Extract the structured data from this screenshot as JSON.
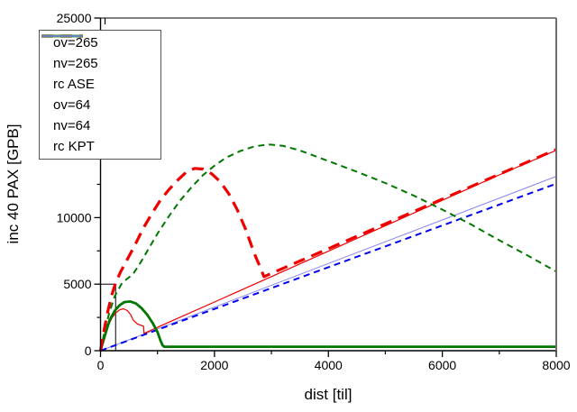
{
  "chart_data": {
    "type": "line",
    "title": "",
    "xlabel": "dist [til]",
    "ylabel": "inc 40 PAX [GPB]",
    "xlim": [
      0,
      8000
    ],
    "ylim": [
      0,
      25000
    ],
    "grid": false,
    "frame_colors": {
      "left": "#000000",
      "bottom": "#000000",
      "top": "#000000",
      "right": "#6e6e6e"
    },
    "x_ticks": {
      "major": [
        0,
        2000,
        4000,
        6000,
        8000
      ],
      "minor": [
        1000,
        3000,
        5000,
        7000
      ],
      "labels": [
        "0",
        "2000",
        "4000",
        "6000",
        "8000"
      ]
    },
    "y_ticks": {
      "major": [
        0,
        5000,
        10000,
        15000,
        20000,
        25000
      ],
      "minor": [
        2500,
        7500,
        12500,
        17500,
        22500
      ],
      "visible_labels": [
        0,
        5000,
        10000,
        25000
      ]
    },
    "legend": {
      "position": "top-left",
      "border_color": "#545454",
      "background": "#ffffff"
    },
    "annotation_box": {
      "x_range": [
        0,
        265
      ],
      "y_range": [
        0,
        5000
      ],
      "stroke": "#000000"
    },
    "z_order": [
      "rc KPT",
      "rc ASE",
      "ov=64",
      "nv=265",
      "nv=64",
      "ov=265"
    ],
    "series": [
      {
        "name": "ov=265",
        "color": "#ee0000",
        "width": 3.2,
        "dash": "13 8",
        "points": [
          [
            0,
            0
          ],
          [
            60,
            1500
          ],
          [
            130,
            3000
          ],
          [
            200,
            4200
          ],
          [
            265,
            5100
          ],
          [
            350,
            5900
          ],
          [
            450,
            6700
          ],
          [
            600,
            7900
          ],
          [
            750,
            9200
          ],
          [
            900,
            10300
          ],
          [
            1050,
            11300
          ],
          [
            1200,
            12100
          ],
          [
            1350,
            12800
          ],
          [
            1500,
            13400
          ],
          [
            1650,
            13700
          ],
          [
            1800,
            13650
          ],
          [
            1950,
            13300
          ],
          [
            2100,
            12700
          ],
          [
            2250,
            11800
          ],
          [
            2400,
            10600
          ],
          [
            2550,
            9100
          ],
          [
            2700,
            7300
          ],
          [
            2800,
            6300
          ],
          [
            2870,
            5560
          ],
          [
            3000,
            5810
          ],
          [
            4000,
            7670
          ],
          [
            5000,
            9530
          ],
          [
            6000,
            11390
          ],
          [
            7000,
            13260
          ],
          [
            8000,
            15120
          ]
        ]
      },
      {
        "name": "nv=265",
        "color": "#007700",
        "width": 2,
        "dash": "7 5",
        "points": [
          [
            0,
            0
          ],
          [
            70,
            1400
          ],
          [
            150,
            2800
          ],
          [
            250,
            4100
          ],
          [
            380,
            5100
          ],
          [
            570,
            5750
          ],
          [
            700,
            6600
          ],
          [
            850,
            7700
          ],
          [
            1000,
            8800
          ],
          [
            1200,
            10100
          ],
          [
            1400,
            11300
          ],
          [
            1600,
            12300
          ],
          [
            1800,
            13200
          ],
          [
            2000,
            13900
          ],
          [
            2200,
            14500
          ],
          [
            2450,
            15000
          ],
          [
            2700,
            15350
          ],
          [
            2950,
            15500
          ],
          [
            3200,
            15400
          ],
          [
            3500,
            15050
          ],
          [
            4000,
            14250
          ],
          [
            4500,
            13450
          ],
          [
            5000,
            12600
          ],
          [
            5500,
            11650
          ],
          [
            6000,
            10600
          ],
          [
            6500,
            9500
          ],
          [
            7000,
            8300
          ],
          [
            7500,
            7150
          ],
          [
            8000,
            5950
          ]
        ]
      },
      {
        "name": "rc ASE",
        "color": "#0000ee",
        "width": 2,
        "dash": "7 5",
        "points": [
          [
            0,
            0
          ],
          [
            8000,
            12550
          ]
        ]
      },
      {
        "name": "ov=64",
        "color": "#ee0000",
        "width": 1.2,
        "dash": null,
        "points": [
          [
            0,
            0
          ],
          [
            60,
            900
          ],
          [
            130,
            1800
          ],
          [
            200,
            2450
          ],
          [
            270,
            2850
          ],
          [
            340,
            3080
          ],
          [
            400,
            3150
          ],
          [
            470,
            3020
          ],
          [
            530,
            2700
          ],
          [
            575,
            2300
          ],
          [
            650,
            2000
          ],
          [
            755,
            1845
          ],
          [
            765,
            1300
          ],
          [
            1200,
            2140
          ],
          [
            2000,
            3660
          ],
          [
            3000,
            5570
          ],
          [
            4000,
            7480
          ],
          [
            5000,
            9390
          ],
          [
            6000,
            11300
          ],
          [
            7000,
            13210
          ],
          [
            8000,
            15060
          ]
        ]
      },
      {
        "name": "nv=64",
        "color": "#007700",
        "width": 2.8,
        "dash": null,
        "points": [
          [
            0,
            0
          ],
          [
            80,
            1200
          ],
          [
            160,
            2300
          ],
          [
            250,
            3000
          ],
          [
            330,
            3400
          ],
          [
            420,
            3650
          ],
          [
            520,
            3700
          ],
          [
            620,
            3550
          ],
          [
            720,
            3200
          ],
          [
            820,
            2700
          ],
          [
            920,
            2050
          ],
          [
            1000,
            1400
          ],
          [
            1050,
            800
          ],
          [
            1090,
            400
          ],
          [
            1120,
            300
          ],
          [
            8000,
            300
          ]
        ]
      },
      {
        "name": "rc KPT",
        "color": "#8585f0",
        "width": 1,
        "dash": null,
        "points": [
          [
            0,
            0
          ],
          [
            8000,
            13100
          ]
        ]
      }
    ]
  }
}
